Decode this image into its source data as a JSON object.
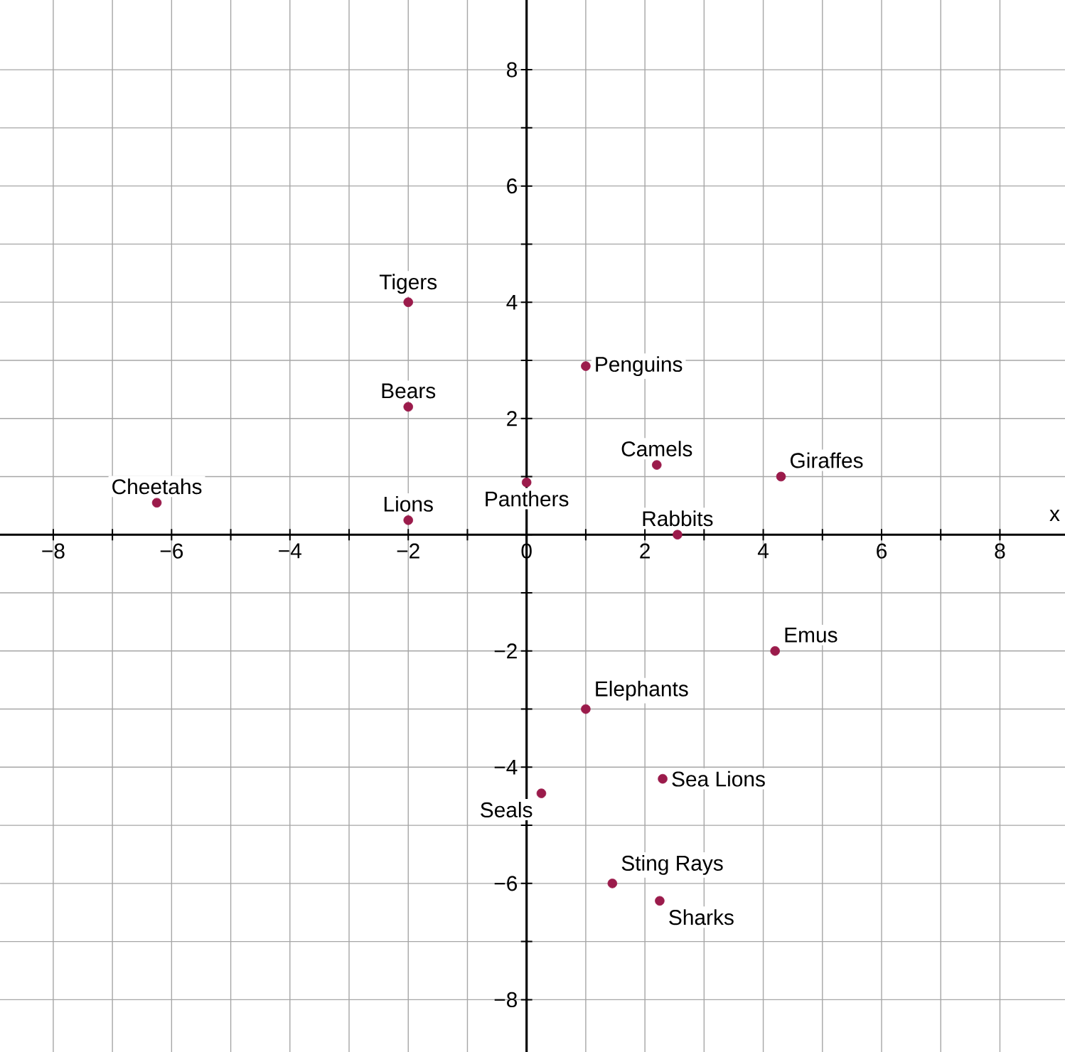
{
  "chart_data": {
    "type": "scatter",
    "xlabel": "x",
    "xlim": [
      -8.9,
      9.1
    ],
    "ylim": [
      -8.9,
      9.2
    ],
    "xticks": [
      {
        "value": -8,
        "label": "−8"
      },
      {
        "value": -7,
        "label": null
      },
      {
        "value": -6,
        "label": "−6"
      },
      {
        "value": -5,
        "label": null
      },
      {
        "value": -4,
        "label": "−4"
      },
      {
        "value": -3,
        "label": null
      },
      {
        "value": -2,
        "label": "−2"
      },
      {
        "value": -1,
        "label": null
      },
      {
        "value": 0,
        "label": "0"
      },
      {
        "value": 1,
        "label": null
      },
      {
        "value": 2,
        "label": "2"
      },
      {
        "value": 3,
        "label": null
      },
      {
        "value": 4,
        "label": "4"
      },
      {
        "value": 5,
        "label": null
      },
      {
        "value": 6,
        "label": "6"
      },
      {
        "value": 7,
        "label": null
      },
      {
        "value": 8,
        "label": "8"
      }
    ],
    "yticks": [
      {
        "value": -8,
        "label": "−8"
      },
      {
        "value": -7,
        "label": null
      },
      {
        "value": -6,
        "label": "−6"
      },
      {
        "value": -5,
        "label": null
      },
      {
        "value": -4,
        "label": "−4"
      },
      {
        "value": -3,
        "label": null
      },
      {
        "value": -2,
        "label": "−2"
      },
      {
        "value": -1,
        "label": null
      },
      {
        "value": 0,
        "label": null
      },
      {
        "value": 1,
        "label": null
      },
      {
        "value": 2,
        "label": "2"
      },
      {
        "value": 3,
        "label": null
      },
      {
        "value": 4,
        "label": "4"
      },
      {
        "value": 5,
        "label": null
      },
      {
        "value": 6,
        "label": "6"
      },
      {
        "value": 7,
        "label": null
      },
      {
        "value": 8,
        "label": "8"
      }
    ],
    "grid": true,
    "marker": "circle",
    "series": [
      {
        "color": "#9b1b4b",
        "x": [
          -2,
          -2,
          -2,
          -6.25,
          0,
          1,
          2.2,
          4.3,
          2.55,
          4.2,
          1,
          2.3,
          0.25,
          1.45,
          2.25
        ],
        "values": [
          4,
          2.2,
          0.25,
          0.55,
          0.9,
          2.9,
          1.2,
          1,
          0,
          -2,
          -3,
          -4.2,
          -4.45,
          -6,
          -6.3
        ]
      }
    ],
    "annotations": [
      {
        "text": "Tigers",
        "x": -2,
        "y": 4
      },
      {
        "text": "Bears",
        "x": -2,
        "y": 2.2
      },
      {
        "text": "Lions",
        "x": -2,
        "y": 0.25
      },
      {
        "text": "Cheetahs",
        "x": -6.25,
        "y": 0.55
      },
      {
        "text": "Panthers",
        "x": 0,
        "y": 0.9
      },
      {
        "text": "Penguins",
        "x": 1,
        "y": 2.9
      },
      {
        "text": "Camels",
        "x": 2.2,
        "y": 1.2
      },
      {
        "text": "Giraffes",
        "x": 4.3,
        "y": 1
      },
      {
        "text": "Rabbits",
        "x": 2.55,
        "y": 0
      },
      {
        "text": "Emus",
        "x": 4.2,
        "y": -2
      },
      {
        "text": "Elephants",
        "x": 1,
        "y": -3
      },
      {
        "text": "Sea Lions",
        "x": 2.3,
        "y": -4.2
      },
      {
        "text": "Seals",
        "x": 0.25,
        "y": -4.45
      },
      {
        "text": "Sting Rays",
        "x": 1.45,
        "y": -6
      },
      {
        "text": "Sharks",
        "x": 2.25,
        "y": -6.3
      }
    ]
  }
}
